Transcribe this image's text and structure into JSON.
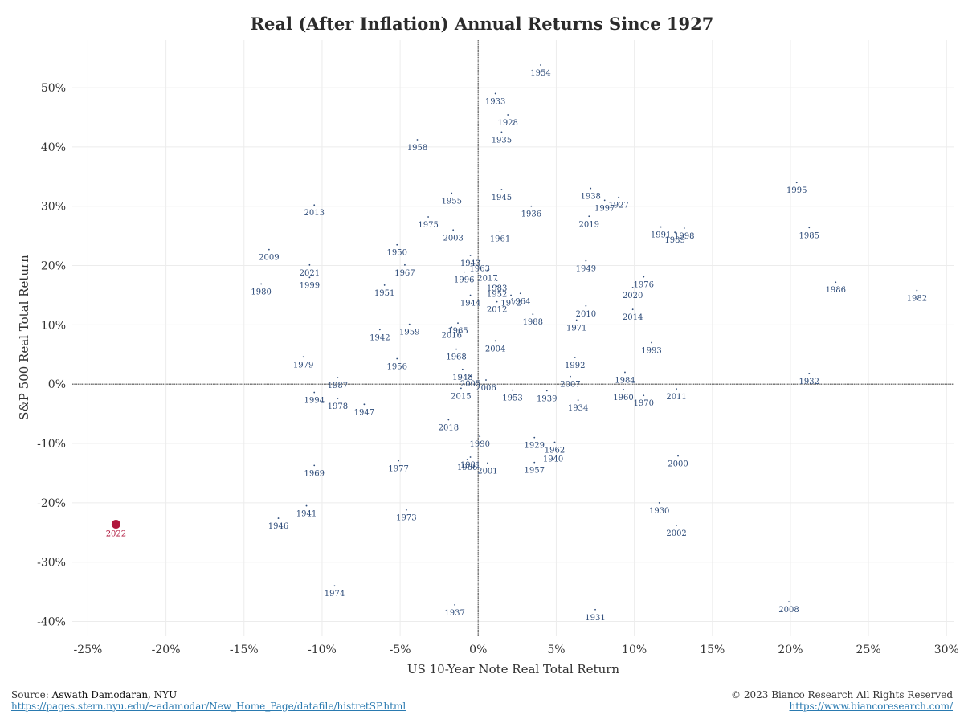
{
  "chart_data": {
    "type": "scatter",
    "title": "Real (After Inflation) Annual Returns Since 1927",
    "xlabel": "US 10-Year Note Real Total Return",
    "ylabel": "S&P 500 Real Total Return",
    "xlim": [
      -26,
      30.5
    ],
    "ylim": [
      -42.5,
      58
    ],
    "x_ticks": [
      -25,
      -20,
      -15,
      -10,
      -5,
      0,
      5,
      10,
      15,
      20,
      25,
      30
    ],
    "y_ticks": [
      -40,
      -30,
      -20,
      -10,
      0,
      10,
      20,
      30,
      40,
      50
    ],
    "x_tick_labels": [
      "-25%",
      "-20%",
      "-15%",
      "-10%",
      "-5%",
      "0%",
      "5%",
      "10%",
      "15%",
      "20%",
      "25%",
      "30%"
    ],
    "y_tick_labels": [
      "-40%",
      "-30%",
      "-20%",
      "-10%",
      "0%",
      "10%",
      "20%",
      "30%",
      "40%",
      "50%"
    ],
    "grid": true,
    "highlight_color": "#b0173d",
    "point_color": "#2c4a78",
    "points": [
      {
        "year": "1927",
        "x": 9.0,
        "y": 31.5
      },
      {
        "year": "1928",
        "x": 1.9,
        "y": 45.4
      },
      {
        "year": "1929",
        "x": 3.6,
        "y": -9.0
      },
      {
        "year": "1930",
        "x": 11.6,
        "y": -20.0
      },
      {
        "year": "1931",
        "x": 7.5,
        "y": -38.0
      },
      {
        "year": "1932",
        "x": 21.2,
        "y": 1.8
      },
      {
        "year": "1933",
        "x": 1.1,
        "y": 49.0
      },
      {
        "year": "1934",
        "x": 6.4,
        "y": -2.7
      },
      {
        "year": "1935",
        "x": 1.5,
        "y": 42.5
      },
      {
        "year": "1936",
        "x": 3.4,
        "y": 30.0
      },
      {
        "year": "1937",
        "x": -1.5,
        "y": -37.2
      },
      {
        "year": "1938",
        "x": 7.2,
        "y": 33.0
      },
      {
        "year": "1939",
        "x": 4.4,
        "y": -1.1
      },
      {
        "year": "1940",
        "x": 4.8,
        "y": -11.3
      },
      {
        "year": "1941",
        "x": -11.0,
        "y": -20.5
      },
      {
        "year": "1942",
        "x": -6.3,
        "y": 9.2
      },
      {
        "year": "1943",
        "x": -0.5,
        "y": 21.7
      },
      {
        "year": "1944",
        "x": -0.5,
        "y": 15.0
      },
      {
        "year": "1945",
        "x": 1.5,
        "y": 32.8
      },
      {
        "year": "1946",
        "x": -12.8,
        "y": -22.6
      },
      {
        "year": "1947",
        "x": -7.3,
        "y": -3.4
      },
      {
        "year": "1948",
        "x": -1.0,
        "y": 2.5
      },
      {
        "year": "1949",
        "x": 6.9,
        "y": 20.8
      },
      {
        "year": "1950",
        "x": -5.2,
        "y": 23.5
      },
      {
        "year": "1951",
        "x": -6.0,
        "y": 16.7
      },
      {
        "year": "1952",
        "x": 1.2,
        "y": 16.5
      },
      {
        "year": "1953",
        "x": 2.2,
        "y": -1.0
      },
      {
        "year": "1954",
        "x": 4.0,
        "y": 53.8
      },
      {
        "year": "1955",
        "x": -1.7,
        "y": 32.2
      },
      {
        "year": "1956",
        "x": -5.2,
        "y": 4.3
      },
      {
        "year": "1957",
        "x": 3.6,
        "y": -13.2
      },
      {
        "year": "1958",
        "x": -3.9,
        "y": 41.2
      },
      {
        "year": "1959",
        "x": -4.4,
        "y": 10.1
      },
      {
        "year": "1960",
        "x": 9.3,
        "y": -0.9
      },
      {
        "year": "1961",
        "x": 1.4,
        "y": 25.8
      },
      {
        "year": "1962",
        "x": 4.9,
        "y": -9.8
      },
      {
        "year": "1963",
        "x": 0.1,
        "y": 20.8
      },
      {
        "year": "1964",
        "x": 2.7,
        "y": 15.3
      },
      {
        "year": "1965",
        "x": -1.3,
        "y": 10.3
      },
      {
        "year": "1966",
        "x": -0.7,
        "y": -12.7
      },
      {
        "year": "1967",
        "x": -4.7,
        "y": 20.1
      },
      {
        "year": "1968",
        "x": -1.4,
        "y": 5.9
      },
      {
        "year": "1969",
        "x": -10.5,
        "y": -13.7
      },
      {
        "year": "1970",
        "x": 10.6,
        "y": -1.9
      },
      {
        "year": "1971",
        "x": 6.3,
        "y": 10.8
      },
      {
        "year": "1972",
        "x": 2.1,
        "y": 15.0
      },
      {
        "year": "1973",
        "x": -4.6,
        "y": -21.2
      },
      {
        "year": "1974",
        "x": -9.2,
        "y": -34.0
      },
      {
        "year": "1975",
        "x": -3.2,
        "y": 28.2
      },
      {
        "year": "1976",
        "x": 10.6,
        "y": 18.1
      },
      {
        "year": "1977",
        "x": -5.1,
        "y": -12.9
      },
      {
        "year": "1978",
        "x": -9.0,
        "y": -2.4
      },
      {
        "year": "1979",
        "x": -11.2,
        "y": 4.6
      },
      {
        "year": "1980",
        "x": -13.9,
        "y": 16.9
      },
      {
        "year": "1981",
        "x": -0.5,
        "y": -12.3
      },
      {
        "year": "1982",
        "x": 28.1,
        "y": 15.8
      },
      {
        "year": "1983",
        "x": 1.2,
        "y": 17.5
      },
      {
        "year": "1984",
        "x": 9.4,
        "y": 2.0
      },
      {
        "year": "1985",
        "x": 21.2,
        "y": 26.4
      },
      {
        "year": "1986",
        "x": 22.9,
        "y": 17.2
      },
      {
        "year": "1987",
        "x": -9.0,
        "y": 1.1
      },
      {
        "year": "1988",
        "x": 3.5,
        "y": 11.8
      },
      {
        "year": "1989",
        "x": 12.6,
        "y": 25.6
      },
      {
        "year": "1990",
        "x": 0.1,
        "y": -8.8
      },
      {
        "year": "1991",
        "x": 11.7,
        "y": 26.5
      },
      {
        "year": "1992",
        "x": 6.2,
        "y": 4.5
      },
      {
        "year": "1993",
        "x": 11.1,
        "y": 7.0
      },
      {
        "year": "1994",
        "x": -10.5,
        "y": -1.4
      },
      {
        "year": "1995",
        "x": 20.4,
        "y": 34.0
      },
      {
        "year": "1996",
        "x": -0.9,
        "y": 18.9
      },
      {
        "year": "1997",
        "x": 8.1,
        "y": 31.0
      },
      {
        "year": "1998",
        "x": 13.2,
        "y": 26.3
      },
      {
        "year": "1999",
        "x": -10.8,
        "y": 18.0
      },
      {
        "year": "2000",
        "x": 12.8,
        "y": -12.1
      },
      {
        "year": "2001",
        "x": 0.6,
        "y": -13.3
      },
      {
        "year": "2002",
        "x": 12.7,
        "y": -23.8
      },
      {
        "year": "2003",
        "x": -1.6,
        "y": 26.0
      },
      {
        "year": "2004",
        "x": 1.1,
        "y": 7.3
      },
      {
        "year": "2005",
        "x": -0.5,
        "y": 1.4
      },
      {
        "year": "2006",
        "x": 0.5,
        "y": 0.7
      },
      {
        "year": "2007",
        "x": 5.9,
        "y": 1.3
      },
      {
        "year": "2008",
        "x": 19.9,
        "y": -36.7
      },
      {
        "year": "2009",
        "x": -13.4,
        "y": 22.7
      },
      {
        "year": "2010",
        "x": 6.9,
        "y": 13.2
      },
      {
        "year": "2011",
        "x": 12.7,
        "y": -0.8
      },
      {
        "year": "2012",
        "x": 1.2,
        "y": 13.9
      },
      {
        "year": "2013",
        "x": -10.5,
        "y": 30.2
      },
      {
        "year": "2014",
        "x": 9.9,
        "y": 12.6
      },
      {
        "year": "2015",
        "x": -1.1,
        "y": -0.7
      },
      {
        "year": "2016",
        "x": -1.7,
        "y": 9.6
      },
      {
        "year": "2017",
        "x": 0.6,
        "y": 19.2
      },
      {
        "year": "2018",
        "x": -1.9,
        "y": -6.0
      },
      {
        "year": "2019",
        "x": 7.1,
        "y": 28.3
      },
      {
        "year": "2020",
        "x": 9.9,
        "y": 16.3
      },
      {
        "year": "2021",
        "x": -10.8,
        "y": 20.1
      },
      {
        "year": "2022",
        "x": -23.2,
        "y": -23.6,
        "highlight": true
      }
    ]
  },
  "footer": {
    "source_prefix": "Source: ",
    "source_name": "Aswath Damodaran, NYU",
    "source_url": "https://pages.stern.nyu.edu/~adamodar/New_Home_Page/datafile/histretSP.html",
    "copyright": "© 2023 Bianco Research All Rights Reserved",
    "site_url": "https://www.biancoresearch.com/"
  }
}
